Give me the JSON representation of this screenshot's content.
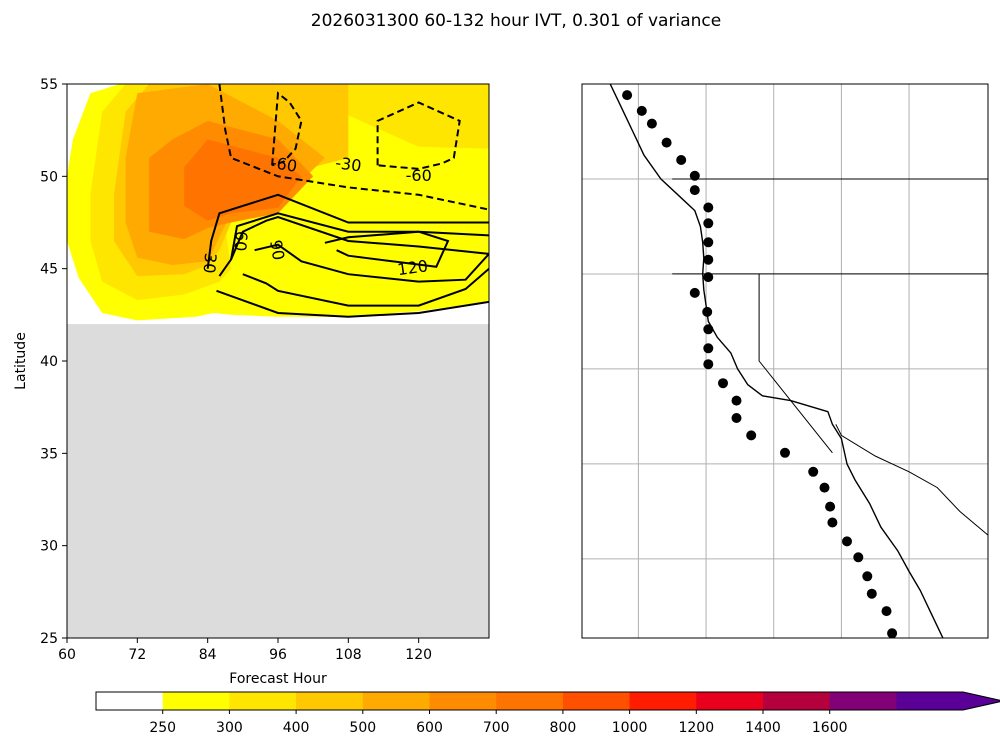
{
  "chart_data": [
    {
      "type": "heatmap",
      "title": "2026031300 60-132 hour IVT, 0.301 of variance",
      "xlabel": "Forecast Hour",
      "ylabel": "Latitude",
      "xlim": [
        60,
        132
      ],
      "ylim": [
        25,
        55
      ],
      "xticks": [
        "60",
        "72",
        "84",
        "96",
        "108",
        "120"
      ],
      "yticks": [
        "25",
        "30",
        "35",
        "40",
        "45",
        "50",
        "55"
      ],
      "masked_region": {
        "lat_max": 42,
        "color": "#dcdcdc"
      },
      "filled_levels": [
        {
          "min": 250,
          "color": "#ffff00",
          "polygon": [
            [
              60,
              50
            ],
            [
              61,
              52
            ],
            [
              64,
              54.5
            ],
            [
              69,
              55
            ],
            [
              132,
              55
            ],
            [
              132,
              43.2
            ],
            [
              120,
              42.7
            ],
            [
              108,
              42.4
            ],
            [
              96,
              42.4
            ],
            [
              88,
              42.5
            ],
            [
              85,
              42.6
            ],
            [
              82,
              42.4
            ],
            [
              72,
              42.2
            ],
            [
              66,
              42.6
            ],
            [
              62,
              44.5
            ],
            [
              60,
              46.5
            ]
          ]
        },
        {
          "min": 300,
          "color": "#ffe600",
          "polygon": [
            [
              64,
              49
            ],
            [
              66,
              53.5
            ],
            [
              70,
              55
            ],
            [
              132,
              55
            ],
            [
              132,
              51.5
            ],
            [
              120,
              51.6
            ],
            [
              108,
              53.3
            ],
            [
              96,
              54.2
            ],
            [
              88,
              54
            ],
            [
              84,
              54
            ],
            [
              88,
              45
            ],
            [
              86,
              44.3
            ],
            [
              80,
              43.6
            ],
            [
              72,
              43.3
            ],
            [
              66,
              44.3
            ],
            [
              64,
              46.5
            ]
          ]
        },
        {
          "min": 400,
          "color": "#ffc800",
          "polygon": [
            [
              68,
              49
            ],
            [
              70,
              53.5
            ],
            [
              74,
              55
            ],
            [
              108,
              55
            ],
            [
              108,
              51
            ],
            [
              96,
              50
            ],
            [
              90,
              49
            ],
            [
              86,
              46
            ],
            [
              84,
              45.2
            ],
            [
              80,
              44.7
            ],
            [
              72,
              44.6
            ],
            [
              68,
              46.5
            ]
          ]
        },
        {
          "min": 500,
          "color": "#ffaa00",
          "polygon": [
            [
              70,
              51
            ],
            [
              72,
              54.5
            ],
            [
              84,
              55
            ],
            [
              96,
              53
            ],
            [
              104,
              51
            ],
            [
              96,
              48.5
            ],
            [
              88,
              48
            ],
            [
              84,
              45.4
            ],
            [
              78,
              45.2
            ],
            [
              72,
              45.6
            ],
            [
              70,
              47.5
            ]
          ]
        },
        {
          "min": 600,
          "color": "#ff8c00",
          "polygon": [
            [
              74,
              51
            ],
            [
              78,
              52
            ],
            [
              84,
              53
            ],
            [
              96,
              52
            ],
            [
              102,
              50
            ],
            [
              96,
              48
            ],
            [
              88,
              47.5
            ],
            [
              84,
              47.2
            ],
            [
              80,
              46.6
            ],
            [
              74,
              47
            ]
          ]
        },
        {
          "min": 700,
          "color": "#ff7400",
          "polygon": [
            [
              80,
              50.5
            ],
            [
              84,
              52
            ],
            [
              96,
              51
            ],
            [
              100,
              50
            ],
            [
              96,
              48.3
            ],
            [
              88,
              48
            ],
            [
              84,
              47.6
            ],
            [
              80,
              48.4
            ]
          ]
        }
      ],
      "contours": [
        {
          "style": "solid",
          "points": [
            [
              84,
              45
            ],
            [
              84.6,
              46.5
            ],
            [
              86,
              48
            ],
            [
              96,
              49
            ],
            [
              108,
              47.5
            ],
            [
              120,
              47.5
            ],
            [
              132,
              47.5
            ]
          ]
        },
        {
          "style": "solid",
          "points": [
            [
              88,
              45.5
            ],
            [
              89,
              47.3
            ],
            [
              96,
              48
            ],
            [
              108,
              47
            ],
            [
              120,
              47
            ],
            [
              132,
              46.8
            ]
          ]
        },
        {
          "style": "solid",
          "points": [
            [
              86,
              44.6
            ],
            [
              88,
              45.5
            ],
            [
              90,
              47
            ],
            [
              94,
              47.6
            ],
            [
              96,
              47.8
            ],
            [
              108,
              46.5
            ],
            [
              120,
              46.2
            ],
            [
              132,
              45.8
            ]
          ]
        },
        {
          "style": "solid",
          "points": [
            [
              92,
              46
            ],
            [
              96,
              46.3
            ],
            [
              100,
              45.4
            ],
            [
              108,
              44.7
            ],
            [
              120,
              44.3
            ],
            [
              128,
              44.4
            ],
            [
              132,
              45.8
            ]
          ]
        },
        {
          "style": "solid",
          "points": [
            [
              90,
              44.7
            ],
            [
              94,
              44.2
            ],
            [
              96,
              43.8
            ],
            [
              108,
              43
            ],
            [
              120,
              43
            ],
            [
              128,
              43.9
            ],
            [
              132,
              45
            ]
          ]
        },
        {
          "style": "solid",
          "points": [
            [
              85.5,
              43.8
            ],
            [
              96,
              42.6
            ],
            [
              108,
              42.4
            ],
            [
              120,
              42.6
            ],
            [
              132,
              43.2
            ]
          ]
        },
        {
          "style": "solid",
          "points": [
            [
              104,
              46.4
            ],
            [
              108,
              46.7
            ],
            [
              120,
              47
            ],
            [
              125,
              46.5
            ],
            [
              123,
              45.1
            ],
            [
              108,
              45.7
            ],
            [
              106,
              46
            ]
          ]
        },
        {
          "style": "dashed",
          "points": [
            [
              86,
              55
            ],
            [
              87,
              52.5
            ],
            [
              88,
              51
            ],
            [
              96,
              50
            ],
            [
              108,
              49.4
            ],
            [
              120,
              49
            ],
            [
              132,
              48.2
            ]
          ]
        },
        {
          "style": "dashed",
          "points": [
            [
              95,
              50.6
            ],
            [
              96,
              54.5
            ],
            [
              98,
              54
            ],
            [
              100,
              53
            ],
            [
              99,
              51.5
            ],
            [
              97,
              50.8
            ],
            [
              95,
              50.6
            ]
          ]
        },
        {
          "style": "dashed",
          "points": [
            [
              113,
              50.6
            ],
            [
              113,
              53
            ],
            [
              120,
              54
            ],
            [
              127,
              53
            ],
            [
              126,
              51
            ],
            [
              124,
              50.7
            ],
            [
              120,
              50.4
            ],
            [
              113,
              50.6
            ]
          ]
        }
      ],
      "contour_labels": [
        {
          "text": "-60",
          "x": 97,
          "y": 50.6,
          "rotation": 10
        },
        {
          "text": "-30",
          "x": 108,
          "y": 50.6,
          "rotation": 8
        },
        {
          "text": "-60",
          "x": 120,
          "y": 50,
          "rotation": 0
        },
        {
          "text": "60",
          "x": 89.5,
          "y": 46.5,
          "rotation": 95
        },
        {
          "text": "90",
          "x": 95.7,
          "y": 46,
          "rotation": 80
        },
        {
          "text": "30",
          "x": 84.2,
          "y": 45.3,
          "rotation": 95
        },
        {
          "text": "120",
          "x": 119,
          "y": 45,
          "rotation": -8
        }
      ]
    },
    {
      "type": "map",
      "xlim": [
        -140,
        -104
      ],
      "ylim": [
        20,
        55
      ],
      "gridlines_lon": [
        -135,
        -129,
        -123,
        -117,
        -111
      ],
      "gridlines_lat": [
        25,
        31,
        37,
        43,
        49
      ],
      "grid": true,
      "coastline": [
        [
          -137.5,
          55
        ],
        [
          -136.5,
          53.5
        ],
        [
          -135.5,
          52
        ],
        [
          -134.5,
          50.5
        ],
        [
          -133,
          49
        ],
        [
          -131.5,
          48
        ],
        [
          -130,
          47
        ],
        [
          -129.5,
          46
        ],
        [
          -129.3,
          45
        ],
        [
          -129.2,
          44
        ],
        [
          -129.3,
          43
        ],
        [
          -129.2,
          42
        ],
        [
          -129,
          41
        ],
        [
          -128.8,
          40
        ],
        [
          -128,
          39
        ],
        [
          -126.8,
          38
        ],
        [
          -126.2,
          37
        ],
        [
          -125.3,
          36
        ],
        [
          -124,
          35.3
        ],
        [
          -121.5,
          35
        ],
        [
          -118.2,
          34.3
        ],
        [
          -117.8,
          33.5
        ],
        [
          -117,
          32.6
        ],
        [
          -116.5,
          31
        ],
        [
          -115.8,
          30
        ],
        [
          -114.5,
          28.5
        ],
        [
          -113.5,
          27
        ],
        [
          -112,
          25.5
        ],
        [
          -111,
          24.2
        ],
        [
          -110,
          23
        ],
        [
          -109,
          21.5
        ],
        [
          -108,
          20
        ]
      ],
      "inland_lines": [
        [
          [
            -132,
            49
          ],
          [
            -104,
            49
          ]
        ],
        [
          [
            -132,
            43
          ],
          [
            -104,
            43
          ]
        ],
        [
          [
            -124.3,
            43
          ],
          [
            -124.3,
            37.5
          ],
          [
            -117.8,
            31.7
          ]
        ],
        [
          [
            -117.5,
            33.5
          ],
          [
            -117,
            32.8
          ],
          [
            -114,
            31.5
          ],
          [
            -111,
            30.5
          ],
          [
            -108.5,
            29.5
          ],
          [
            -106.5,
            28
          ],
          [
            -104,
            26.5
          ]
        ]
      ],
      "stations": [
        [
          -136,
          54.3
        ],
        [
          -134.7,
          53.3
        ],
        [
          -133.8,
          52.5
        ],
        [
          -132.5,
          51.3
        ],
        [
          -131.2,
          50.2
        ],
        [
          -130,
          49.2
        ],
        [
          -130,
          48.3
        ],
        [
          -128.8,
          47.2
        ],
        [
          -128.8,
          46.2
        ],
        [
          -128.8,
          45
        ],
        [
          -128.8,
          43.9
        ],
        [
          -128.8,
          42.8
        ],
        [
          -130,
          41.8
        ],
        [
          -128.9,
          40.6
        ],
        [
          -128.8,
          39.5
        ],
        [
          -128.8,
          38.3
        ],
        [
          -128.8,
          37.3
        ],
        [
          -127.5,
          36.1
        ],
        [
          -126.3,
          35
        ],
        [
          -126.3,
          33.9
        ],
        [
          -125,
          32.8
        ],
        [
          -122,
          31.7
        ],
        [
          -119.5,
          30.5
        ],
        [
          -118.5,
          29.5
        ],
        [
          -118,
          28.3
        ],
        [
          -117.8,
          27.3
        ],
        [
          -116.5,
          26.1
        ],
        [
          -115.5,
          25.1
        ],
        [
          -114.7,
          23.9
        ],
        [
          -114.3,
          22.8
        ],
        [
          -113,
          21.7
        ],
        [
          -112.5,
          20.3
        ]
      ]
    },
    {
      "type": "colorbar",
      "ticks": [
        "250",
        "300",
        "400",
        "500",
        "600",
        "700",
        "800",
        "1000",
        "1200",
        "1400",
        "1600"
      ],
      "colors": [
        "#ffffff",
        "#ffff00",
        "#ffe600",
        "#ffc800",
        "#ffaa00",
        "#ff8c00",
        "#ff7400",
        "#ff5000",
        "#ff1c00",
        "#e8001c",
        "#b4003c",
        "#820078",
        "#5a0096"
      ],
      "extend": "max"
    }
  ]
}
